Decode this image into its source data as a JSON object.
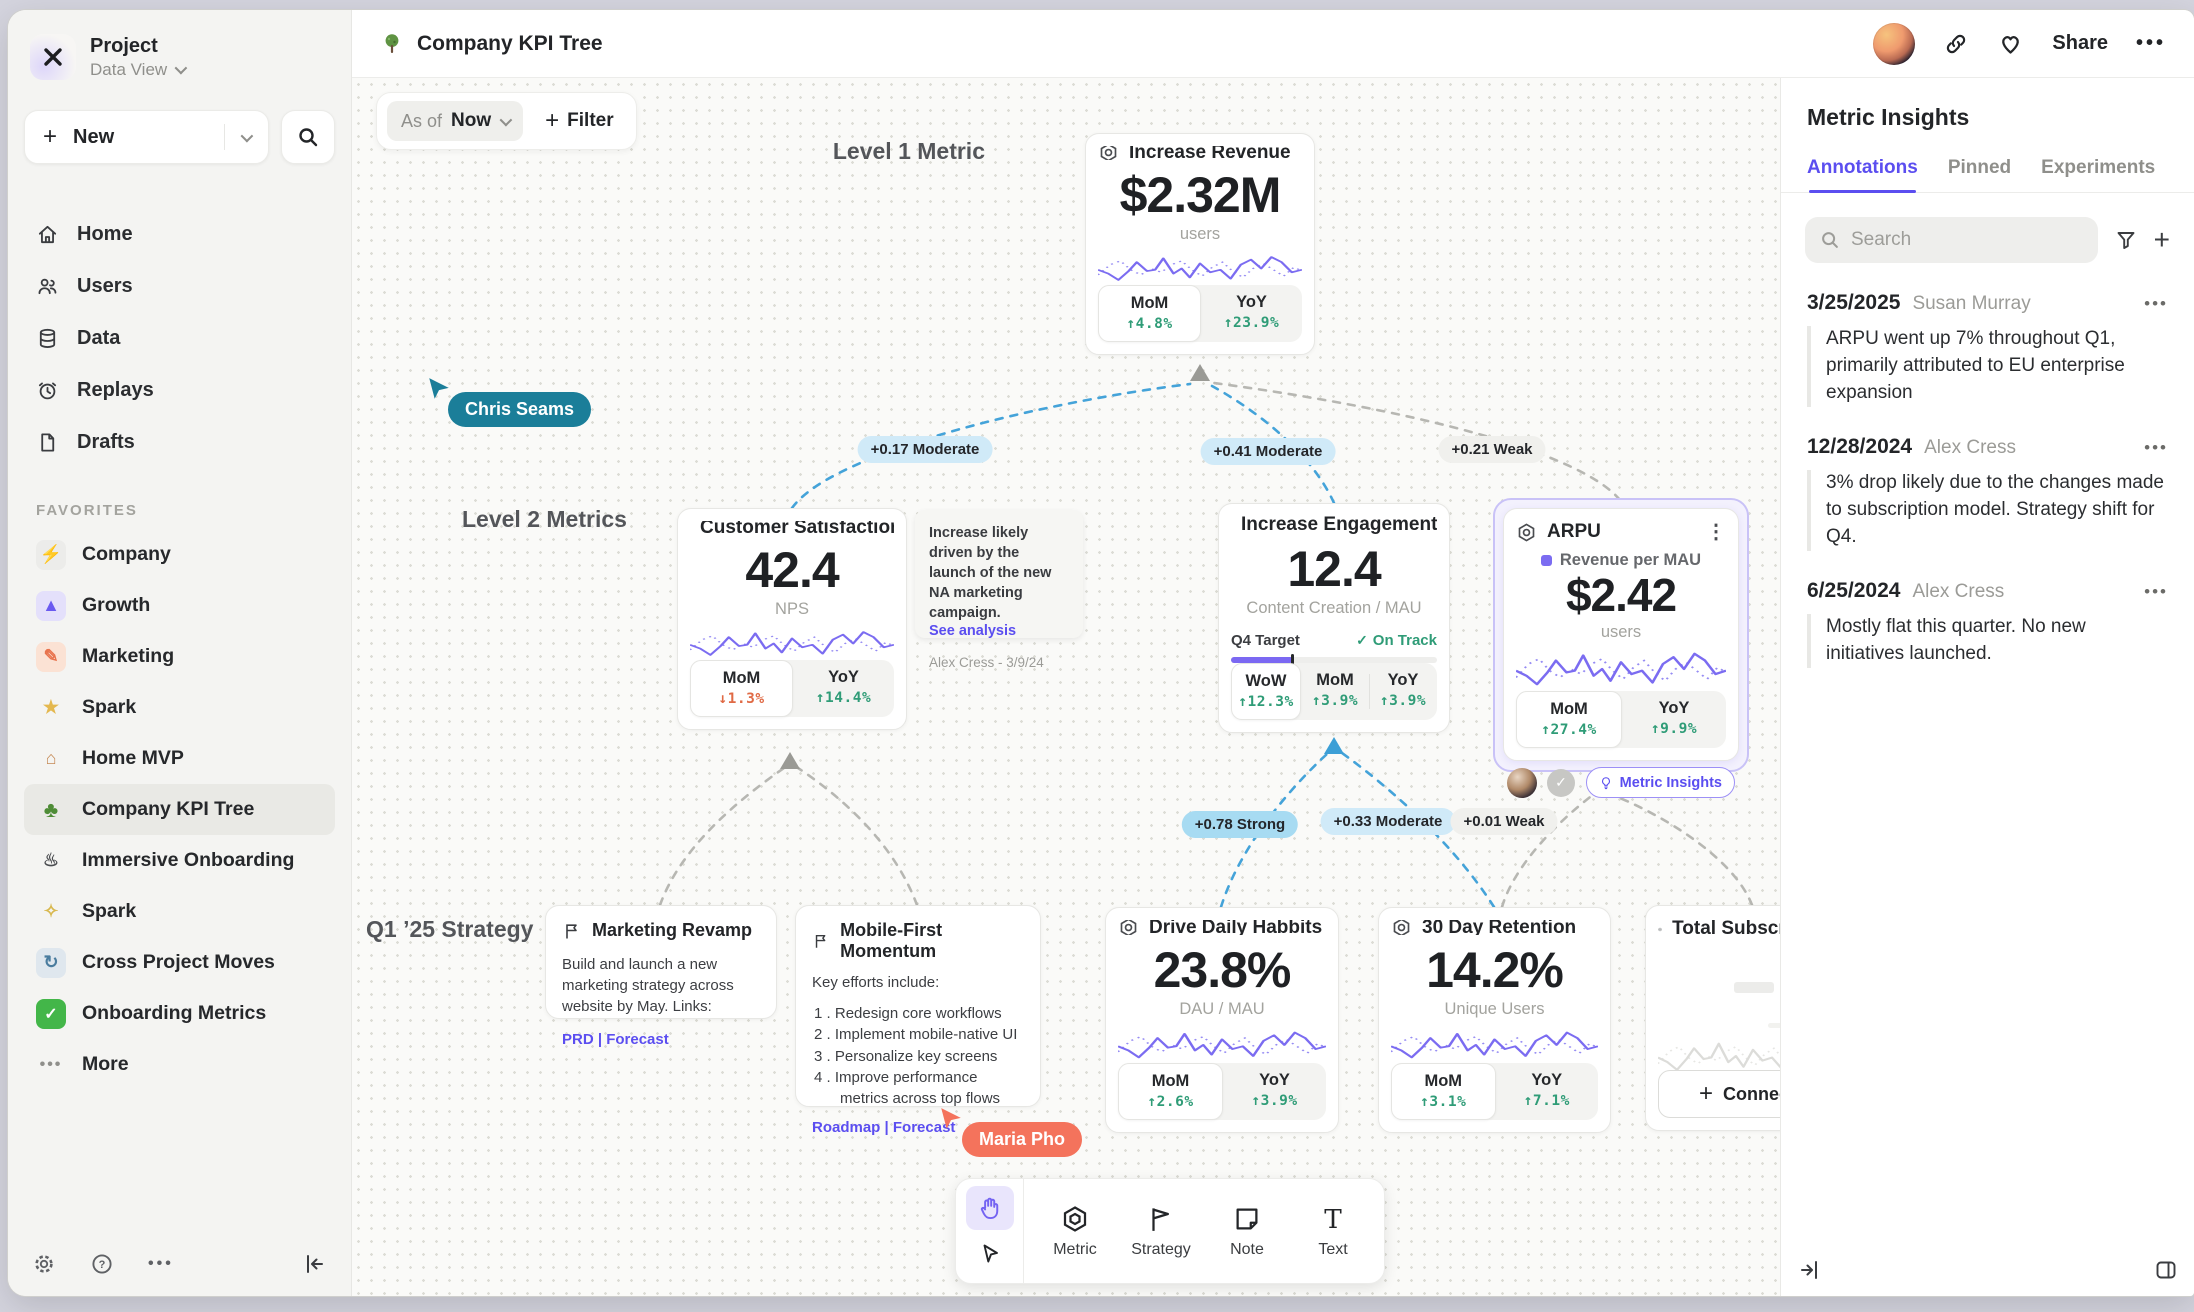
{
  "sidebar": {
    "project_name": "Project",
    "project_view": "Data View",
    "new_label": "New",
    "nav": [
      {
        "icon": "home-icon",
        "label": "Home"
      },
      {
        "icon": "users-icon",
        "label": "Users"
      },
      {
        "icon": "data-icon",
        "label": "Data"
      },
      {
        "icon": "replays-icon",
        "label": "Replays"
      },
      {
        "icon": "drafts-icon",
        "label": "Drafts"
      }
    ],
    "favorites_label": "FAVORITES",
    "favorites": [
      {
        "icon": "lightning-icon",
        "glyph": "⚡",
        "label": "Company"
      },
      {
        "icon": "rocket-icon",
        "glyph": "▲",
        "label": "Growth"
      },
      {
        "icon": "pencil-icon",
        "glyph": "✎",
        "label": "Marketing"
      },
      {
        "icon": "star-icon",
        "glyph": "★",
        "label": "Spark"
      },
      {
        "icon": "house-icon",
        "glyph": "⌂",
        "label": "Home MVP"
      },
      {
        "icon": "tree-icon",
        "glyph": "♣",
        "label": "Company KPI Tree",
        "selected": true
      },
      {
        "icon": "train-icon",
        "glyph": "♨",
        "label": "Immersive Onboarding"
      },
      {
        "icon": "sparkles-icon",
        "glyph": "✧",
        "label": "Spark"
      },
      {
        "icon": "wave-icon",
        "glyph": "↻",
        "label": "Cross Project Moves"
      },
      {
        "icon": "check-icon",
        "glyph": "✓",
        "label": "Onboarding Metrics"
      }
    ],
    "more_label": "More"
  },
  "header": {
    "title": "Company KPI Tree",
    "share_label": "Share"
  },
  "canvas": {
    "asof_prefix": "As of",
    "asof_value": "Now",
    "filter_label": "Filter",
    "labels": {
      "level1": "Level 1 Metric",
      "level2": "Level 2 Metrics",
      "strategy": "Q1 ’25 Strategy"
    },
    "edges": [
      {
        "label": "+0.17 Moderate",
        "strength": "moderate"
      },
      {
        "label": "+0.41 Moderate",
        "strength": "moderate"
      },
      {
        "label": "+0.21 Weak",
        "strength": "weak"
      },
      {
        "label": "+0.78 Strong",
        "strength": "strong"
      },
      {
        "label": "+0.33 Moderate",
        "strength": "moderate"
      },
      {
        "label": "+0.01 Weak",
        "strength": "weak"
      }
    ],
    "cards": {
      "revenue": {
        "title": "Increase Revenue",
        "value": "$2.32M",
        "unit": "users",
        "stats": [
          {
            "label": "MoM",
            "value": "↑4.8%",
            "dir": "up",
            "active": true
          },
          {
            "label": "YoY",
            "value": "↑23.9%",
            "dir": "up",
            "active": false
          }
        ]
      },
      "csat": {
        "title": "Customer Satisfaction",
        "value": "42.4",
        "unit": "NPS",
        "stats": [
          {
            "label": "MoM",
            "value": "↓1.3%",
            "dir": "down",
            "active": true
          },
          {
            "label": "YoY",
            "value": "↑14.4%",
            "dir": "up",
            "active": false
          }
        ]
      },
      "engagement": {
        "title": "Increase Engagement",
        "value": "12.4",
        "unit": "Content Creation / MAU",
        "target_label": "Q4 Target",
        "target_status": "On Track",
        "progress_pct": 30,
        "stats": [
          {
            "label": "WoW",
            "value": "↑12.3%",
            "dir": "up",
            "active": true
          },
          {
            "label": "MoM",
            "value": "↑3.9%",
            "dir": "up",
            "active": false
          },
          {
            "label": "YoY",
            "value": "↑3.9%",
            "dir": "up",
            "active": false
          }
        ]
      },
      "arpu": {
        "title": "ARPU",
        "legend": "Revenue per MAU",
        "value": "$2.42",
        "unit": "users",
        "insights_label": "Metric Insights",
        "stats": [
          {
            "label": "MoM",
            "value": "↑27.4%",
            "dir": "up",
            "active": true
          },
          {
            "label": "YoY",
            "value": "↑9.9%",
            "dir": "up",
            "active": false
          }
        ]
      },
      "habits": {
        "title": "Drive Daily Habbits",
        "value": "23.8%",
        "unit": "DAU / MAU",
        "stats": [
          {
            "label": "MoM",
            "value": "↑2.6%",
            "dir": "up",
            "active": true
          },
          {
            "label": "YoY",
            "value": "↑3.9%",
            "dir": "up",
            "active": false
          }
        ]
      },
      "retention": {
        "title": "30 Day Retention",
        "value": "14.2%",
        "unit": "Unique Users",
        "stats": [
          {
            "label": "MoM",
            "value": "↑3.1%",
            "dir": "up",
            "active": true
          },
          {
            "label": "YoY",
            "value": "↑7.1%",
            "dir": "up",
            "active": false
          }
        ]
      },
      "total": {
        "title": "Total Subscriptions",
        "connect_label": "Connect"
      }
    },
    "notes": {
      "campaign": {
        "text": "Increase likely driven by the launch of the new NA marketing campaign.",
        "link_label": "See analysis",
        "author": "Alex Cress - 3/9/24"
      },
      "revamp": {
        "title": "Marketing Revamp",
        "body": "Build and launch a new marketing strategy across website by May. Links:",
        "links": "PRD | Forecast"
      },
      "mobile": {
        "title": "Mobile-First Momentum",
        "intro": "Key efforts include:",
        "items": [
          "Redesign core workflows",
          "Implement mobile-native UI",
          "Personalize key screens",
          "Improve performance metrics across top flows"
        ],
        "links": "Roadmap | Forecast"
      }
    },
    "cursors": [
      {
        "name": "Chris Seams",
        "color": "#1b7e99"
      },
      {
        "name": "Maria Pho",
        "color": "#f4735c"
      }
    ],
    "tools": [
      {
        "icon": "metric-icon",
        "label": "Metric"
      },
      {
        "icon": "strategy-icon",
        "label": "Strategy"
      },
      {
        "icon": "note-icon",
        "label": "Note"
      },
      {
        "icon": "text-icon",
        "label": "Text"
      }
    ]
  },
  "panel": {
    "title": "Metric Insights",
    "tabs": [
      {
        "label": "Annotations",
        "active": true
      },
      {
        "label": "Pinned",
        "active": false
      },
      {
        "label": "Experiments",
        "active": false
      }
    ],
    "search_placeholder": "Search",
    "annotations": [
      {
        "date": "3/25/2025",
        "author": "Susan Murray",
        "text": "ARPU went up 7% throughout Q1, primarily attributed to EU enterprise expansion"
      },
      {
        "date": "12/28/2024",
        "author": "Alex Cress",
        "text": "3% drop likely due to the changes made to subscription model. Strategy shift for Q4."
      },
      {
        "date": "6/25/2024",
        "author": "Alex Cress",
        "text": "Mostly flat this quarter. No new initiatives launched."
      }
    ]
  },
  "colors": {
    "accent": "#5b4ef0",
    "green": "#2f9c77",
    "red": "#e06a45",
    "edge_blue": "#44a3d9",
    "edge_gray": "#b7b7b2",
    "cursor_teal": "#1b7e99",
    "cursor_coral": "#f4735c"
  }
}
